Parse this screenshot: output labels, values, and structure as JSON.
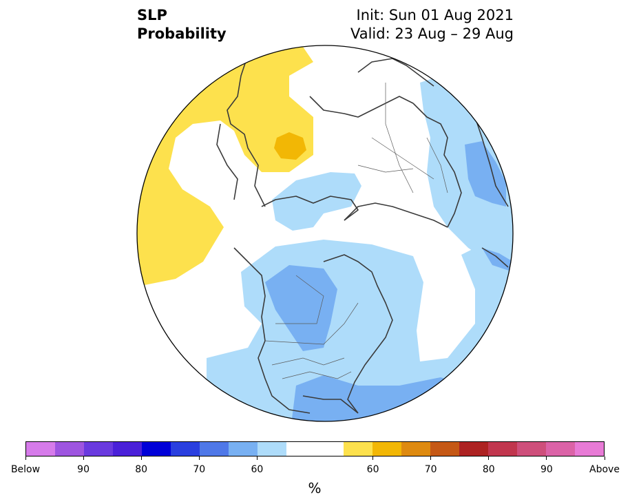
{
  "title": {
    "variable": "SLP",
    "field": "Probability",
    "init": "Init: Sun 01 Aug 2021",
    "valid": "Valid: 23 Aug – 29 Aug"
  },
  "map": {
    "projection": "north-polar-stereographic",
    "region": "Northern Hemisphere",
    "land_outline_color": "#3a3a3a",
    "anomalies": [
      {
        "region": "North Pacific / Bering",
        "category": "above",
        "level": "50-60"
      },
      {
        "region": "Eastern Siberia",
        "category": "above",
        "level": "50-60"
      },
      {
        "region": "Eastern Siberia core",
        "category": "above",
        "level": "60-70"
      },
      {
        "region": "Northern Canada / Arctic",
        "category": "below",
        "level": "50-60"
      },
      {
        "region": "Central Canada",
        "category": "below",
        "level": "60-70"
      },
      {
        "region": "North Atlantic",
        "category": "below",
        "level": "50-60"
      },
      {
        "region": "Gulf of Mexico / Atlantic coast",
        "category": "below",
        "level": "60-70"
      },
      {
        "region": "Scandinavia / Europe",
        "category": "below",
        "level": "50-60"
      },
      {
        "region": "Northern Europe core",
        "category": "below",
        "level": "60-70"
      }
    ]
  },
  "colorbar": {
    "colors": [
      "#d67bea",
      "#9e55e0",
      "#6a3adf",
      "#4a20d9",
      "#0000d8",
      "#2a3fdf",
      "#4f78e8",
      "#78b0f2",
      "#aedcfa",
      "#ffffff",
      "#ffffff",
      "#fde14d",
      "#f2b705",
      "#de8a10",
      "#c55815",
      "#ad2222",
      "#c1364e",
      "#ce4f7b",
      "#db63a7",
      "#e87bd6"
    ],
    "tick_labels": [
      "Below",
      "90",
      "80",
      "70",
      "60",
      "60",
      "70",
      "80",
      "90",
      "Above"
    ],
    "unit": "%"
  }
}
